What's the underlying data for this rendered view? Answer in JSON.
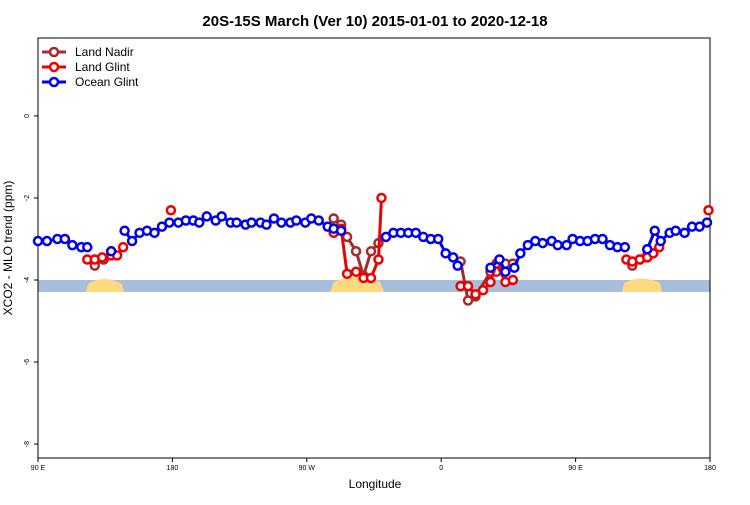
{
  "chart_data": {
    "type": "line",
    "title": "20S-15S March (Ver 10)   2015-01-01 to 2020-12-18",
    "x_label": "Longitude",
    "y_label": "XCO2 - MLO trend (ppm)",
    "xlim": [
      90,
      540
    ],
    "ylim": [
      -8.34,
      1.9
    ],
    "xticks": [
      {
        "value": 90,
        "label": "90 E"
      },
      {
        "value": 180,
        "label": "180"
      },
      {
        "value": 270,
        "label": "90 W"
      },
      {
        "value": 360,
        "label": "0"
      },
      {
        "value": 450,
        "label": "90 E"
      },
      {
        "value": 540,
        "label": "180"
      }
    ],
    "yticks": [
      -8,
      -6,
      -4,
      -2,
      0
    ],
    "legend": "top-left",
    "series": [
      {
        "name": "Land Nadir",
        "color": "#a52a2a",
        "x": [
          128,
          134,
          139,
          null,
          288,
          293,
          297,
          303,
          308,
          313,
          318,
          null,
          373,
          378,
          383,
          393,
          397,
          403,
          408,
          null,
          488,
          493,
          498,
          502
        ],
        "values": [
          -3.65,
          -3.5,
          -3.3,
          null,
          -2.5,
          -2.65,
          -2.95,
          -3.3,
          -3.9,
          -3.3,
          -3.1,
          null,
          -3.55,
          -4.5,
          -4.4,
          -3.8,
          -3.8,
          -3.6,
          -3.6,
          null,
          -3.65,
          -3.5,
          -3.25,
          -3.35
        ]
      },
      {
        "name": "Land Glint",
        "color": "#ee0000",
        "x": [
          123,
          128,
          133,
          139,
          143,
          147,
          null,
          179,
          null,
          288,
          293,
          297,
          303,
          308,
          313,
          318,
          320,
          null,
          373,
          378,
          383,
          388,
          393,
          397,
          403,
          408,
          null,
          484,
          488,
          493,
          498,
          502,
          506,
          null,
          539
        ],
        "values": [
          -3.5,
          -3.5,
          -3.45,
          -3.4,
          -3.4,
          -3.2,
          null,
          -2.3,
          null,
          -2.85,
          -2.75,
          -3.85,
          -3.8,
          -3.95,
          -3.95,
          -3.5,
          -2.0,
          null,
          -4.15,
          -4.15,
          -4.35,
          -4.25,
          -4.05,
          -3.6,
          -4.05,
          -4.0,
          null,
          -3.5,
          -3.55,
          -3.5,
          -3.45,
          -3.35,
          -3.2,
          null,
          -2.3
        ]
      },
      {
        "name": "Ocean Glint",
        "color": "#0000ee",
        "x": [
          90,
          96,
          103,
          108,
          113,
          119,
          123,
          null,
          139,
          null,
          148,
          153,
          158,
          163,
          168,
          173,
          178,
          184,
          189,
          194,
          198,
          203,
          209,
          213,
          219,
          223,
          229,
          233,
          239,
          243,
          248,
          253,
          259,
          263,
          269,
          273,
          278,
          284,
          288,
          293,
          null,
          323,
          328,
          333,
          338,
          343,
          348,
          353,
          358,
          363,
          368,
          371,
          null,
          393,
          399,
          403,
          409,
          413,
          418,
          423,
          428,
          434,
          438,
          444,
          448,
          453,
          458,
          463,
          468,
          473,
          478,
          483,
          null,
          498,
          503,
          507,
          513,
          517,
          523,
          528,
          533,
          538
        ],
        "values": [
          -3.05,
          -3.05,
          -3.0,
          -3.0,
          -3.15,
          -3.2,
          -3.2,
          null,
          -3.3,
          null,
          -2.8,
          -3.05,
          -2.85,
          -2.8,
          -2.85,
          -2.7,
          -2.6,
          -2.6,
          -2.55,
          -2.55,
          -2.6,
          -2.45,
          -2.55,
          -2.45,
          -2.6,
          -2.6,
          -2.65,
          -2.6,
          -2.6,
          -2.65,
          -2.5,
          -2.6,
          -2.6,
          -2.55,
          -2.6,
          -2.5,
          -2.55,
          -2.7,
          -2.75,
          -2.8,
          null,
          -2.95,
          -2.85,
          -2.85,
          -2.85,
          -2.85,
          -2.95,
          -3.0,
          -3.0,
          -3.35,
          -3.45,
          -3.65,
          null,
          -3.7,
          -3.5,
          -3.8,
          -3.7,
          -3.35,
          -3.15,
          -3.05,
          -3.1,
          -3.05,
          -3.15,
          -3.15,
          -3.0,
          -3.05,
          -3.05,
          -3.0,
          -3.0,
          -3.15,
          -3.2,
          -3.2,
          null,
          -3.25,
          -2.8,
          -3.05,
          -2.85,
          -2.8,
          -2.85,
          -2.7,
          -2.7,
          -2.6
        ]
      }
    ]
  }
}
